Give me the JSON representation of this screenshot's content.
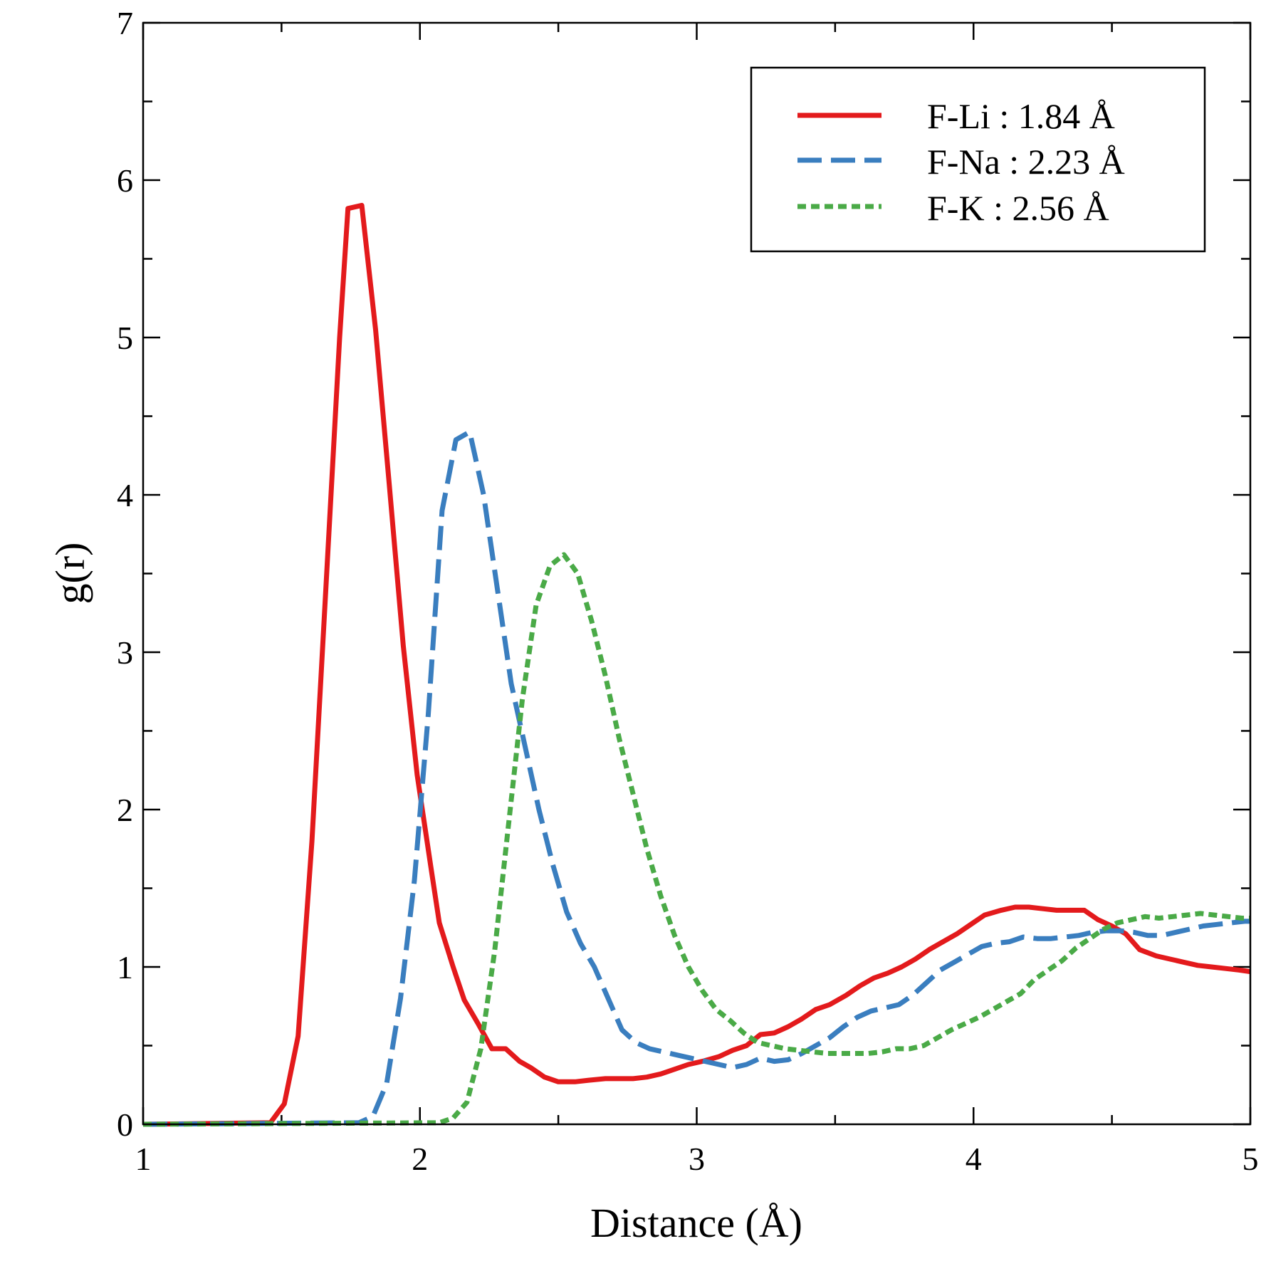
{
  "chart_data": {
    "type": "line",
    "title": "",
    "xlabel": "Distance (Å)",
    "ylabel": "g(r)",
    "xlim": [
      1,
      5
    ],
    "ylim": [
      0,
      7
    ],
    "xticks": [
      1,
      2,
      3,
      4,
      5
    ],
    "yticks": [
      0,
      1,
      2,
      3,
      4,
      5,
      6,
      7
    ],
    "grid": false,
    "legend_position": "top-right",
    "series": [
      {
        "name": "F-Li : 1.84 Å",
        "color": "#e31a1c",
        "style": "solid",
        "x": [
          1.0,
          1.46,
          1.51,
          1.56,
          1.61,
          1.66,
          1.71,
          1.74,
          1.79,
          1.84,
          1.89,
          1.94,
          1.99,
          2.04,
          2.07,
          2.12,
          2.16,
          2.21,
          2.26,
          2.31,
          2.36,
          2.4,
          2.45,
          2.5,
          2.56,
          2.61,
          2.67,
          2.72,
          2.77,
          2.82,
          2.87,
          2.92,
          2.97,
          3.02,
          3.08,
          3.13,
          3.18,
          3.23,
          3.28,
          3.33,
          3.38,
          3.43,
          3.48,
          3.54,
          3.59,
          3.64,
          3.69,
          3.74,
          3.79,
          3.84,
          3.89,
          3.94,
          3.99,
          4.04,
          4.1,
          4.15,
          4.2,
          4.25,
          4.3,
          4.35,
          4.4,
          4.45,
          4.5,
          4.55,
          4.6,
          4.66,
          4.71,
          4.76,
          4.81,
          4.86,
          4.91,
          4.96,
          5.0
        ],
        "values": [
          0.0,
          0.01,
          0.13,
          0.56,
          1.8,
          3.4,
          5.0,
          5.82,
          5.84,
          5.05,
          4.05,
          3.04,
          2.22,
          1.63,
          1.28,
          1.0,
          0.79,
          0.64,
          0.48,
          0.48,
          0.4,
          0.36,
          0.3,
          0.27,
          0.27,
          0.28,
          0.29,
          0.29,
          0.29,
          0.3,
          0.32,
          0.35,
          0.38,
          0.4,
          0.43,
          0.47,
          0.5,
          0.57,
          0.58,
          0.62,
          0.67,
          0.73,
          0.76,
          0.82,
          0.88,
          0.93,
          0.96,
          1.0,
          1.05,
          1.11,
          1.16,
          1.21,
          1.27,
          1.33,
          1.36,
          1.38,
          1.38,
          1.37,
          1.36,
          1.36,
          1.36,
          1.3,
          1.26,
          1.21,
          1.11,
          1.07,
          1.05,
          1.03,
          1.01,
          1.0,
          0.99,
          0.98,
          0.97
        ]
      },
      {
        "name": "F-Na : 2.23 Å",
        "color": "#3a7ebf",
        "style": "dashed",
        "x": [
          1.0,
          1.78,
          1.83,
          1.88,
          1.93,
          1.98,
          2.03,
          2.08,
          2.13,
          2.18,
          2.23,
          2.28,
          2.33,
          2.38,
          2.43,
          2.48,
          2.53,
          2.58,
          2.63,
          2.68,
          2.73,
          2.78,
          2.83,
          2.88,
          2.93,
          2.98,
          3.03,
          3.08,
          3.13,
          3.18,
          3.23,
          3.28,
          3.33,
          3.38,
          3.43,
          3.48,
          3.53,
          3.58,
          3.63,
          3.68,
          3.73,
          3.78,
          3.83,
          3.88,
          3.93,
          3.98,
          4.03,
          4.08,
          4.13,
          4.18,
          4.23,
          4.28,
          4.33,
          4.38,
          4.43,
          4.48,
          4.53,
          4.58,
          4.63,
          4.68,
          4.73,
          4.78,
          4.83,
          4.88,
          4.93,
          4.98,
          5.0
        ],
        "values": [
          0.0,
          0.01,
          0.05,
          0.26,
          0.8,
          1.55,
          2.6,
          3.9,
          4.35,
          4.4,
          4.0,
          3.4,
          2.8,
          2.4,
          2.0,
          1.65,
          1.35,
          1.15,
          1.0,
          0.8,
          0.6,
          0.52,
          0.48,
          0.46,
          0.44,
          0.42,
          0.4,
          0.38,
          0.36,
          0.38,
          0.42,
          0.4,
          0.41,
          0.45,
          0.5,
          0.55,
          0.62,
          0.68,
          0.72,
          0.74,
          0.76,
          0.82,
          0.9,
          0.98,
          1.03,
          1.08,
          1.13,
          1.15,
          1.16,
          1.19,
          1.18,
          1.18,
          1.19,
          1.2,
          1.22,
          1.23,
          1.23,
          1.22,
          1.2,
          1.2,
          1.22,
          1.24,
          1.26,
          1.27,
          1.28,
          1.29,
          1.29
        ]
      },
      {
        "name": "F-K : 2.56 Å",
        "color": "#4aaa47",
        "style": "dotted",
        "x": [
          1.0,
          2.07,
          2.12,
          2.17,
          2.22,
          2.27,
          2.32,
          2.37,
          2.42,
          2.47,
          2.52,
          2.57,
          2.62,
          2.67,
          2.72,
          2.77,
          2.82,
          2.87,
          2.92,
          2.97,
          3.02,
          3.07,
          3.12,
          3.17,
          3.22,
          3.27,
          3.32,
          3.37,
          3.42,
          3.47,
          3.52,
          3.57,
          3.62,
          3.67,
          3.72,
          3.77,
          3.82,
          3.87,
          3.92,
          3.97,
          4.02,
          4.07,
          4.12,
          4.17,
          4.22,
          4.27,
          4.32,
          4.37,
          4.42,
          4.47,
          4.52,
          4.57,
          4.62,
          4.67,
          4.72,
          4.77,
          4.82,
          4.87,
          4.92,
          4.97,
          5.0
        ],
        "values": [
          0.0,
          0.01,
          0.04,
          0.14,
          0.48,
          1.1,
          1.9,
          2.7,
          3.3,
          3.55,
          3.62,
          3.5,
          3.2,
          2.85,
          2.45,
          2.1,
          1.75,
          1.45,
          1.2,
          1.0,
          0.85,
          0.73,
          0.66,
          0.58,
          0.52,
          0.5,
          0.48,
          0.47,
          0.46,
          0.45,
          0.45,
          0.45,
          0.45,
          0.46,
          0.48,
          0.48,
          0.5,
          0.55,
          0.6,
          0.64,
          0.68,
          0.73,
          0.78,
          0.83,
          0.92,
          0.98,
          1.04,
          1.12,
          1.18,
          1.24,
          1.28,
          1.3,
          1.32,
          1.31,
          1.32,
          1.33,
          1.34,
          1.33,
          1.32,
          1.31,
          1.31
        ]
      }
    ]
  }
}
